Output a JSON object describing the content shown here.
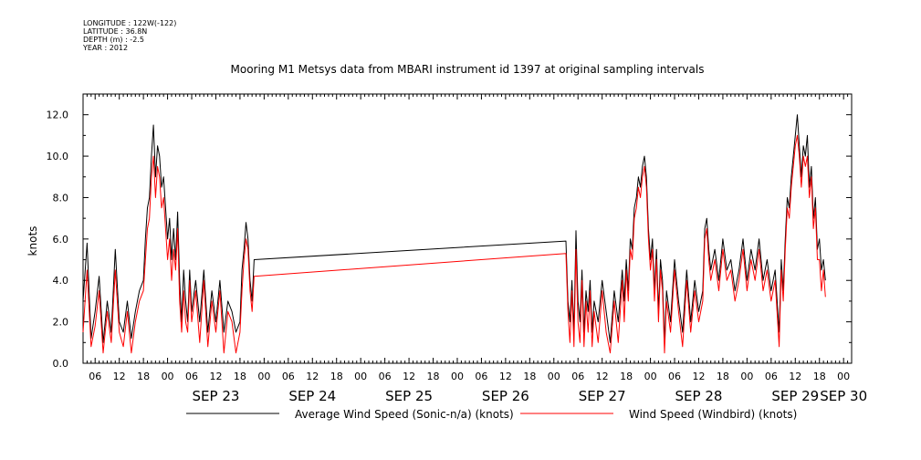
{
  "meta": {
    "longitude": "LONGITUDE : 122W(-122)",
    "latitude": "LATITUDE : 36.8N",
    "depth": "DEPTH (m) : -2.5",
    "year": "YEAR : 2012"
  },
  "chart_data": {
    "type": "line",
    "title": "Mooring M1 Metsys data from MBARI instrument id 1397 at original sampling intervals",
    "ylabel": "knots",
    "xlabel": "",
    "ylim": [
      0,
      13
    ],
    "y_ticks": [
      "0.0",
      "2.0",
      "4.0",
      "6.0",
      "8.0",
      "10.0",
      "12.0"
    ],
    "x_unit": "hours since SEP 22 00:00, 2012",
    "xlim": [
      3,
      194
    ],
    "hour_tick_labels": [
      "06",
      "12",
      "18",
      "00",
      "06",
      "12",
      "18",
      "00",
      "06",
      "12",
      "18",
      "00",
      "06",
      "12",
      "18",
      "00",
      "06",
      "12",
      "18",
      "00",
      "06",
      "12",
      "18",
      "00",
      "06",
      "12",
      "18",
      "00",
      "06",
      "12",
      "18",
      "00"
    ],
    "day_labels": [
      "SEP 23",
      "SEP 24",
      "SEP 25",
      "SEP 26",
      "SEP 27",
      "SEP 28",
      "SEP 29",
      "SEP 30"
    ],
    "grid": false,
    "legend_position": "bottom",
    "series": [
      {
        "name": "Average Wind Speed (Sonic-n/a) (knots)",
        "color": "#000000",
        "points": [
          [
            3,
            3.0
          ],
          [
            4,
            5.8
          ],
          [
            5,
            1.2
          ],
          [
            6,
            2.5
          ],
          [
            7,
            4.2
          ],
          [
            8,
            1.0
          ],
          [
            9,
            3.0
          ],
          [
            10,
            1.5
          ],
          [
            11,
            5.5
          ],
          [
            12,
            2.0
          ],
          [
            13,
            1.5
          ],
          [
            14,
            3.0
          ],
          [
            15,
            1.2
          ],
          [
            16,
            2.5
          ],
          [
            17,
            3.5
          ],
          [
            18,
            4.0
          ],
          [
            18.5,
            6.0
          ],
          [
            19,
            7.5
          ],
          [
            19.5,
            8.0
          ],
          [
            20,
            10.0
          ],
          [
            20.5,
            11.5
          ],
          [
            21,
            9.0
          ],
          [
            21.5,
            10.5
          ],
          [
            22,
            10.0
          ],
          [
            22.5,
            8.5
          ],
          [
            23,
            9.0
          ],
          [
            23.5,
            7.5
          ],
          [
            24,
            6.0
          ],
          [
            24.5,
            7.0
          ],
          [
            25,
            5.0
          ],
          [
            25.5,
            6.5
          ],
          [
            26,
            5.0
          ],
          [
            26.5,
            7.3
          ],
          [
            27,
            4.0
          ],
          [
            27.5,
            2.0
          ],
          [
            28,
            4.5
          ],
          [
            28.5,
            3.0
          ],
          [
            29,
            2.0
          ],
          [
            29.5,
            4.5
          ],
          [
            30,
            2.5
          ],
          [
            31,
            4.0
          ],
          [
            32,
            2.0
          ],
          [
            33,
            4.5
          ],
          [
            34,
            1.5
          ],
          [
            35,
            3.5
          ],
          [
            36,
            2.0
          ],
          [
            37,
            4.0
          ],
          [
            38,
            1.5
          ],
          [
            39,
            3.0
          ],
          [
            40,
            2.5
          ],
          [
            41,
            1.5
          ],
          [
            42,
            2.0
          ],
          [
            42.5,
            4.5
          ],
          [
            43,
            5.5
          ],
          [
            43.5,
            6.8
          ],
          [
            44,
            6.0
          ],
          [
            44.5,
            4.0
          ],
          [
            45,
            3.0
          ],
          [
            45.5,
            5.0
          ],
          [
            123,
            5.9
          ],
          [
            123.5,
            3.0
          ],
          [
            124,
            2.0
          ],
          [
            124.5,
            4.0
          ],
          [
            125,
            1.5
          ],
          [
            125.5,
            6.4
          ],
          [
            126,
            3.0
          ],
          [
            126.5,
            2.0
          ],
          [
            127,
            4.5
          ],
          [
            127.5,
            1.5
          ],
          [
            128,
            3.5
          ],
          [
            128.5,
            2.5
          ],
          [
            129,
            4.0
          ],
          [
            129.5,
            1.5
          ],
          [
            130,
            3.0
          ],
          [
            131,
            2.0
          ],
          [
            132,
            4.0
          ],
          [
            133,
            2.5
          ],
          [
            134,
            1.0
          ],
          [
            135,
            3.5
          ],
          [
            136,
            2.0
          ],
          [
            137,
            4.5
          ],
          [
            137.5,
            3.0
          ],
          [
            138,
            5.0
          ],
          [
            138.5,
            3.5
          ],
          [
            139,
            6.0
          ],
          [
            139.5,
            5.5
          ],
          [
            140,
            7.5
          ],
          [
            140.5,
            8.0
          ],
          [
            141,
            9.0
          ],
          [
            141.5,
            8.5
          ],
          [
            142,
            9.5
          ],
          [
            142.5,
            10.0
          ],
          [
            143,
            9.0
          ],
          [
            143.5,
            6.5
          ],
          [
            144,
            5.0
          ],
          [
            144.5,
            6.0
          ],
          [
            145,
            3.5
          ],
          [
            145.5,
            5.5
          ],
          [
            146,
            2.5
          ],
          [
            146.5,
            5.0
          ],
          [
            147,
            4.0
          ],
          [
            147.5,
            1.0
          ],
          [
            148,
            3.5
          ],
          [
            149,
            2.0
          ],
          [
            150,
            5.0
          ],
          [
            151,
            3.0
          ],
          [
            152,
            1.5
          ],
          [
            153,
            4.5
          ],
          [
            154,
            2.0
          ],
          [
            155,
            4.0
          ],
          [
            156,
            2.5
          ],
          [
            157,
            3.5
          ],
          [
            157.5,
            6.5
          ],
          [
            158,
            7.0
          ],
          [
            158.5,
            5.5
          ],
          [
            159,
            4.5
          ],
          [
            160,
            5.5
          ],
          [
            161,
            4.0
          ],
          [
            162,
            6.0
          ],
          [
            163,
            4.5
          ],
          [
            164,
            5.0
          ],
          [
            165,
            3.5
          ],
          [
            166,
            4.5
          ],
          [
            167,
            6.0
          ],
          [
            168,
            4.0
          ],
          [
            169,
            5.5
          ],
          [
            170,
            4.5
          ],
          [
            171,
            6.0
          ],
          [
            172,
            4.0
          ],
          [
            173,
            5.0
          ],
          [
            174,
            3.5
          ],
          [
            175,
            4.5
          ],
          [
            176,
            1.5
          ],
          [
            176.5,
            5.0
          ],
          [
            177,
            3.5
          ],
          [
            177.5,
            6.0
          ],
          [
            178,
            8.0
          ],
          [
            178.5,
            7.5
          ],
          [
            179,
            9.0
          ],
          [
            179.5,
            10.0
          ],
          [
            180,
            11.0
          ],
          [
            180.5,
            12.0
          ],
          [
            181,
            10.5
          ],
          [
            181.5,
            9.0
          ],
          [
            182,
            10.5
          ],
          [
            182.5,
            10.0
          ],
          [
            183,
            11.0
          ],
          [
            183.5,
            8.5
          ],
          [
            184,
            9.5
          ],
          [
            184.5,
            7.0
          ],
          [
            185,
            8.0
          ],
          [
            185.5,
            5.5
          ],
          [
            186,
            6.0
          ],
          [
            186.5,
            4.5
          ],
          [
            187,
            5.0
          ],
          [
            187.5,
            4.0
          ]
        ]
      },
      {
        "name": "Wind Speed (Windbird) (knots)",
        "color": "#ff0000",
        "points": [
          [
            3,
            1.5
          ],
          [
            4,
            4.5
          ],
          [
            5,
            0.8
          ],
          [
            6,
            1.8
          ],
          [
            7,
            3.5
          ],
          [
            8,
            0.5
          ],
          [
            9,
            2.5
          ],
          [
            10,
            1.0
          ],
          [
            11,
            4.5
          ],
          [
            12,
            1.5
          ],
          [
            13,
            0.8
          ],
          [
            14,
            2.5
          ],
          [
            15,
            0.5
          ],
          [
            16,
            2.0
          ],
          [
            17,
            3.0
          ],
          [
            18,
            3.5
          ],
          [
            18.5,
            5.0
          ],
          [
            19,
            6.5
          ],
          [
            19.5,
            7.0
          ],
          [
            20,
            9.0
          ],
          [
            20.5,
            10.0
          ],
          [
            21,
            8.0
          ],
          [
            21.5,
            9.5
          ],
          [
            22,
            9.0
          ],
          [
            22.5,
            7.5
          ],
          [
            23,
            8.0
          ],
          [
            23.5,
            6.5
          ],
          [
            24,
            5.0
          ],
          [
            24.5,
            6.0
          ],
          [
            25,
            4.0
          ],
          [
            25.5,
            5.5
          ],
          [
            26,
            4.5
          ],
          [
            26.5,
            6.5
          ],
          [
            27,
            3.0
          ],
          [
            27.5,
            1.5
          ],
          [
            28,
            3.5
          ],
          [
            28.5,
            2.0
          ],
          [
            29,
            1.5
          ],
          [
            29.5,
            4.0
          ],
          [
            30,
            2.0
          ],
          [
            31,
            3.5
          ],
          [
            32,
            1.0
          ],
          [
            33,
            4.0
          ],
          [
            34,
            0.8
          ],
          [
            35,
            3.0
          ],
          [
            36,
            1.5
          ],
          [
            37,
            3.5
          ],
          [
            38,
            0.5
          ],
          [
            39,
            2.5
          ],
          [
            40,
            2.0
          ],
          [
            41,
            0.5
          ],
          [
            42,
            1.5
          ],
          [
            42.5,
            3.5
          ],
          [
            43,
            5.0
          ],
          [
            43.5,
            6.0
          ],
          [
            44,
            5.5
          ],
          [
            44.5,
            3.5
          ],
          [
            45,
            2.5
          ],
          [
            45.5,
            4.2
          ],
          [
            123,
            5.3
          ],
          [
            123.5,
            2.5
          ],
          [
            124,
            1.0
          ],
          [
            124.5,
            3.5
          ],
          [
            125,
            0.8
          ],
          [
            125.5,
            5.5
          ],
          [
            126,
            2.0
          ],
          [
            126.5,
            1.0
          ],
          [
            127,
            4.0
          ],
          [
            127.5,
            0.8
          ],
          [
            128,
            3.0
          ],
          [
            128.5,
            1.5
          ],
          [
            129,
            3.5
          ],
          [
            129.5,
            0.8
          ],
          [
            130,
            2.5
          ],
          [
            131,
            1.0
          ],
          [
            132,
            3.5
          ],
          [
            133,
            1.5
          ],
          [
            134,
            0.5
          ],
          [
            135,
            3.0
          ],
          [
            136,
            1.0
          ],
          [
            137,
            4.0
          ],
          [
            137.5,
            2.0
          ],
          [
            138,
            4.5
          ],
          [
            138.5,
            3.0
          ],
          [
            139,
            5.5
          ],
          [
            139.5,
            5.0
          ],
          [
            140,
            7.0
          ],
          [
            140.5,
            7.5
          ],
          [
            141,
            8.5
          ],
          [
            141.5,
            8.0
          ],
          [
            142,
            9.0
          ],
          [
            142.5,
            9.5
          ],
          [
            143,
            8.5
          ],
          [
            143.5,
            6.0
          ],
          [
            144,
            4.5
          ],
          [
            144.5,
            5.5
          ],
          [
            145,
            3.0
          ],
          [
            145.5,
            5.0
          ],
          [
            146,
            2.0
          ],
          [
            146.5,
            4.5
          ],
          [
            147,
            3.5
          ],
          [
            147.5,
            0.5
          ],
          [
            148,
            3.0
          ],
          [
            149,
            1.5
          ],
          [
            150,
            4.5
          ],
          [
            151,
            2.5
          ],
          [
            152,
            0.8
          ],
          [
            153,
            4.0
          ],
          [
            154,
            1.5
          ],
          [
            155,
            3.5
          ],
          [
            156,
            2.0
          ],
          [
            157,
            3.0
          ],
          [
            157.5,
            6.0
          ],
          [
            158,
            6.5
          ],
          [
            158.5,
            5.0
          ],
          [
            159,
            4.0
          ],
          [
            160,
            5.0
          ],
          [
            161,
            3.5
          ],
          [
            162,
            5.5
          ],
          [
            163,
            4.0
          ],
          [
            164,
            4.5
          ],
          [
            165,
            3.0
          ],
          [
            166,
            4.0
          ],
          [
            167,
            5.5
          ],
          [
            168,
            3.5
          ],
          [
            169,
            5.0
          ],
          [
            170,
            4.0
          ],
          [
            171,
            5.5
          ],
          [
            172,
            3.5
          ],
          [
            173,
            4.5
          ],
          [
            174,
            3.0
          ],
          [
            175,
            4.0
          ],
          [
            176,
            0.8
          ],
          [
            176.5,
            4.5
          ],
          [
            177,
            3.0
          ],
          [
            177.5,
            5.5
          ],
          [
            178,
            7.5
          ],
          [
            178.5,
            7.0
          ],
          [
            179,
            8.5
          ],
          [
            179.5,
            9.5
          ],
          [
            180,
            10.5
          ],
          [
            180.5,
            11.0
          ],
          [
            181,
            10.0
          ],
          [
            181.5,
            8.5
          ],
          [
            182,
            10.0
          ],
          [
            182.5,
            9.5
          ],
          [
            183,
            10.0
          ],
          [
            183.5,
            8.0
          ],
          [
            184,
            9.0
          ],
          [
            184.5,
            6.5
          ],
          [
            185,
            7.5
          ],
          [
            185.5,
            5.0
          ],
          [
            186,
            5.0
          ],
          [
            186.5,
            3.5
          ],
          [
            187,
            4.5
          ],
          [
            187.5,
            3.2
          ]
        ]
      }
    ]
  }
}
